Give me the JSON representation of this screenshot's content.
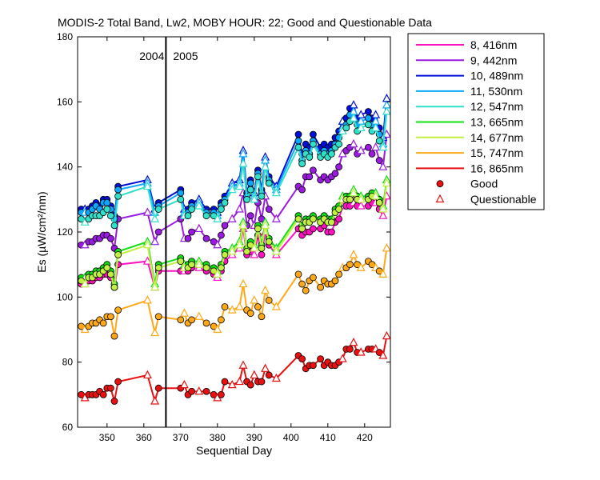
{
  "chart_data": {
    "type": "line",
    "title": "MODIS-2 Total Band,  Lw2, MOBY HOUR: 22;  Good and Questionable Data",
    "xlabel": "Sequential Day",
    "ylabel": "Es (µW/cm²/nm)",
    "xlim": [
      342,
      427
    ],
    "ylim": [
      60,
      180
    ],
    "xticks": [
      350,
      360,
      370,
      380,
      390,
      400,
      410,
      420
    ],
    "yticks": [
      60,
      80,
      100,
      120,
      140,
      160,
      180
    ],
    "grid": false,
    "year_divider": {
      "x": 366,
      "left_label": "2004",
      "right_label": "2005"
    },
    "x": [
      343,
      344,
      345,
      346,
      347,
      348,
      349,
      350,
      351,
      352,
      353,
      361,
      363,
      364,
      370,
      371,
      372,
      373,
      375,
      377,
      379,
      380,
      381,
      382,
      384,
      386,
      387,
      388,
      389,
      390,
      391,
      392,
      393,
      394,
      396,
      402,
      403,
      404,
      405,
      406,
      408,
      409,
      410,
      411,
      412,
      413,
      414,
      415,
      416,
      417,
      418,
      419,
      421,
      422,
      423,
      424,
      425,
      426
    ],
    "questionable_x": [
      344,
      361,
      363,
      371,
      375,
      380,
      384,
      386,
      387,
      390,
      393,
      396,
      414,
      417,
      419,
      423,
      425,
      426
    ],
    "series": [
      {
        "name": "8, 416nm",
        "color": "#ff10c0",
        "values": [
          104,
          104,
          105,
          105,
          106,
          106,
          107,
          107,
          106,
          103,
          110,
          111,
          103,
          108,
          108,
          108,
          108,
          109,
          109,
          108,
          107,
          106,
          108,
          111,
          113,
          115,
          121,
          113,
          114,
          113,
          119,
          113,
          120,
          116,
          113,
          121,
          119,
          120,
          120,
          121,
          121,
          122,
          120,
          120,
          123,
          124,
          128,
          128,
          128,
          129,
          128,
          128,
          128,
          129,
          129,
          127,
          125,
          131
        ]
      },
      {
        "name": "9, 442nm",
        "color": "#9a1ae0",
        "values": [
          116,
          116,
          117,
          117,
          118,
          118,
          119,
          119,
          118,
          115,
          124,
          126,
          117,
          120,
          124,
          118,
          118,
          120,
          121,
          118,
          117,
          116,
          119,
          122,
          124,
          127,
          132,
          122,
          125,
          122,
          129,
          124,
          131,
          127,
          124,
          134,
          133,
          137,
          137,
          139,
          136,
          137,
          136,
          137,
          138,
          140,
          144,
          145,
          146,
          147,
          144,
          145,
          146,
          144,
          146,
          142,
          140,
          150
        ]
      },
      {
        "name": "10, 489nm",
        "color": "#0010d8",
        "values": [
          127,
          127,
          127,
          128,
          129,
          128,
          130,
          130,
          128,
          125,
          134,
          136,
          127,
          129,
          133,
          127,
          127,
          129,
          130,
          127,
          127,
          126,
          129,
          131,
          135,
          136,
          145,
          132,
          136,
          132,
          139,
          133,
          143,
          137,
          134,
          150,
          144,
          147,
          146,
          150,
          146,
          147,
          146,
          147,
          149,
          151,
          154,
          155,
          158,
          159,
          155,
          156,
          157,
          155,
          156,
          152,
          149,
          161
        ]
      },
      {
        "name": "11, 530nm",
        "color": "#0aa8ff",
        "values": [
          126,
          126,
          126,
          127,
          128,
          127,
          129,
          129,
          127,
          124,
          133,
          135,
          126,
          128,
          132,
          126,
          126,
          128,
          129,
          126,
          126,
          125,
          128,
          130,
          134,
          135,
          144,
          131,
          135,
          131,
          138,
          132,
          142,
          136,
          133,
          148,
          142,
          145,
          144,
          148,
          144,
          145,
          144,
          145,
          147,
          149,
          152,
          153,
          156,
          157,
          153,
          154,
          155,
          153,
          154,
          150,
          147,
          159
        ]
      },
      {
        "name": "12, 547nm",
        "color": "#30e0c8",
        "values": [
          124,
          123,
          124,
          125,
          125,
          125,
          126,
          127,
          125,
          122,
          131,
          134,
          124,
          127,
          130,
          125,
          125,
          127,
          128,
          125,
          125,
          124,
          127,
          129,
          133,
          134,
          141,
          130,
          133,
          130,
          137,
          131,
          140,
          135,
          132,
          146,
          141,
          144,
          143,
          147,
          143,
          144,
          143,
          144,
          146,
          147,
          151,
          152,
          154,
          155,
          151,
          152,
          153,
          151,
          152,
          148,
          146,
          157
        ]
      },
      {
        "name": "13, 665nm",
        "color": "#10e010",
        "values": [
          106,
          106,
          107,
          107,
          108,
          108,
          109,
          110,
          108,
          104,
          114,
          117,
          104,
          110,
          112,
          110,
          110,
          111,
          111,
          110,
          109,
          108,
          110,
          114,
          115,
          117,
          123,
          115,
          117,
          116,
          122,
          116,
          123,
          118,
          115,
          125,
          122,
          124,
          124,
          125,
          124,
          125,
          124,
          124,
          127,
          128,
          131,
          131,
          131,
          133,
          131,
          131,
          131,
          132,
          132,
          130,
          128,
          136
        ]
      },
      {
        "name": "14, 677nm",
        "color": "#c0f040",
        "values": [
          105,
          104,
          106,
          106,
          107,
          107,
          108,
          109,
          107,
          103,
          113,
          116,
          103,
          109,
          111,
          109,
          109,
          110,
          110,
          109,
          108,
          107,
          109,
          113,
          114,
          116,
          122,
          114,
          116,
          115,
          121,
          115,
          122,
          117,
          114,
          124,
          121,
          123,
          123,
          124,
          123,
          124,
          123,
          123,
          126,
          127,
          130,
          130,
          130,
          132,
          130,
          130,
          130,
          131,
          131,
          129,
          127,
          135
        ]
      },
      {
        "name": "15, 747nm",
        "color": "#ffa818",
        "values": [
          91,
          90,
          91,
          92,
          92,
          93,
          92,
          94,
          94,
          88,
          96,
          99,
          89,
          94,
          93,
          95,
          92,
          93,
          94,
          92,
          91,
          90,
          93,
          97,
          96,
          97,
          104,
          96,
          95,
          99,
          97,
          94,
          102,
          99,
          97,
          107,
          104,
          102,
          105,
          106,
          103,
          105,
          104,
          104,
          105,
          107,
          109,
          109,
          110,
          113,
          110,
          109,
          111,
          110,
          109,
          108,
          107,
          115
        ]
      },
      {
        "name": "16, 865nm",
        "color": "#e81010",
        "values": [
          70,
          69,
          70,
          70,
          70,
          71,
          70,
          72,
          72,
          68,
          74,
          76,
          68,
          72,
          72,
          73,
          70,
          71,
          71,
          71,
          70,
          69,
          70,
          74,
          73,
          74,
          79,
          74,
          73,
          76,
          74,
          74,
          78,
          76,
          75,
          82,
          81,
          78,
          79,
          79,
          81,
          79,
          80,
          79,
          79,
          80,
          81,
          84,
          84,
          86,
          83,
          83,
          84,
          84,
          84,
          83,
          82,
          88
        ]
      }
    ],
    "legend": {
      "placement": "right",
      "good_label": "Good",
      "questionable_label": "Questionable"
    }
  }
}
